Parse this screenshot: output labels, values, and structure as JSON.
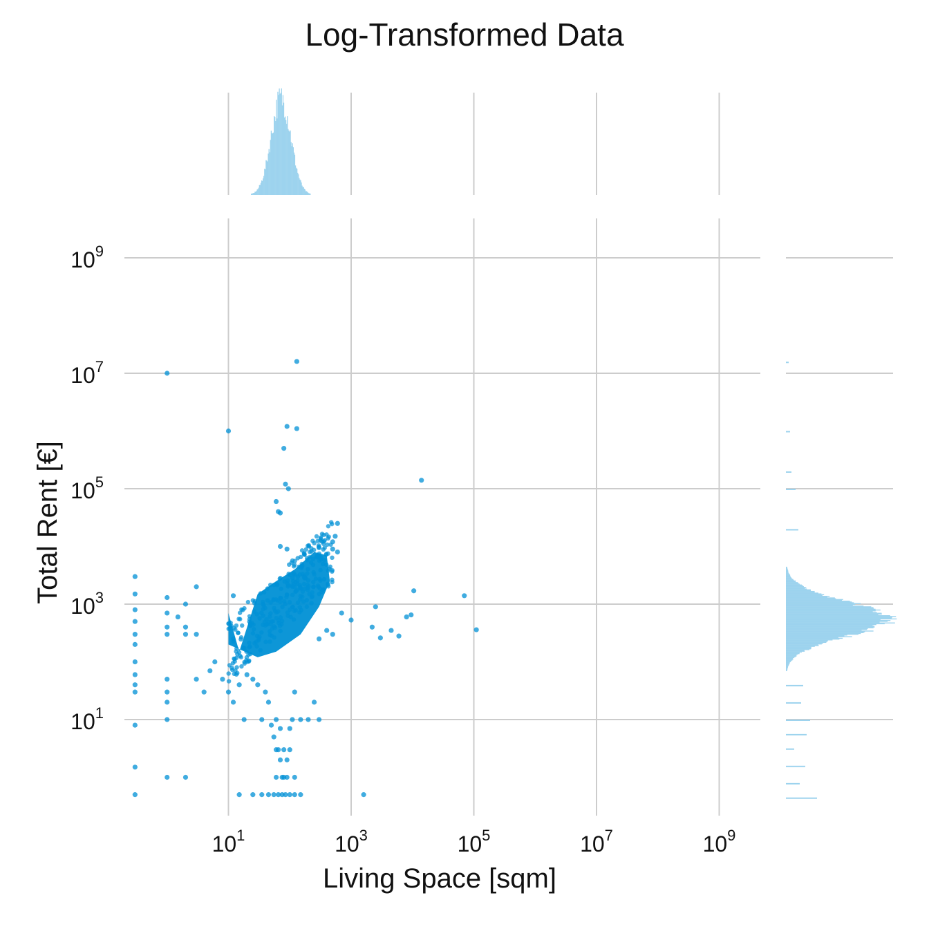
{
  "chart_data": {
    "type": "scatter",
    "title": "Log-Transformed Data",
    "xlabel": "Living Space [sqm]",
    "ylabel": "Total Rent [€]",
    "x_scale": "log",
    "y_scale": "log",
    "xlim": [
      0.2,
      3500000000
    ],
    "ylim": [
      0.2,
      5000000000
    ],
    "x_ticks": [
      {
        "value": 10,
        "base": "10",
        "exp": "1"
      },
      {
        "value": 1000,
        "base": "10",
        "exp": "3"
      },
      {
        "value": 100000,
        "base": "10",
        "exp": "5"
      },
      {
        "value": 10000000,
        "base": "10",
        "exp": "7"
      },
      {
        "value": 1000000000,
        "base": "10",
        "exp": "9"
      }
    ],
    "y_ticks": [
      {
        "value": 10,
        "base": "10",
        "exp": "1"
      },
      {
        "value": 1000,
        "base": "10",
        "exp": "3"
      },
      {
        "value": 100000,
        "base": "10",
        "exp": "5"
      },
      {
        "value": 10000000,
        "base": "10",
        "exp": "7"
      },
      {
        "value": 1000000000,
        "base": "10",
        "exp": "9"
      }
    ],
    "grid": true,
    "marginal_histograms": [
      "top",
      "right"
    ],
    "colors": {
      "points": "#0090d5",
      "histogram": "#9dd3ee",
      "grid": "#cccccc"
    },
    "points": [
      [
        1,
        10000000
      ],
      [
        130,
        16000000
      ],
      [
        10,
        1000000
      ],
      [
        90,
        1200000
      ],
      [
        130,
        1100000
      ],
      [
        80,
        500000
      ],
      [
        85,
        120000
      ],
      [
        95,
        100000
      ],
      [
        14000,
        140000
      ],
      [
        60,
        60000
      ],
      [
        65,
        40000
      ],
      [
        70,
        38000
      ],
      [
        600,
        25000
      ],
      [
        550,
        15000
      ],
      [
        500,
        12000
      ],
      [
        90,
        9000
      ],
      [
        70,
        10000
      ],
      [
        300,
        9500
      ],
      [
        500,
        9000
      ],
      [
        600,
        8000
      ],
      [
        3,
        2000
      ],
      [
        12,
        1400
      ],
      [
        10500,
        1700
      ],
      [
        70000,
        1400
      ],
      [
        1000,
        530
      ],
      [
        2500,
        900
      ],
      [
        2200,
        400
      ],
      [
        3000,
        260
      ],
      [
        4500,
        350
      ],
      [
        8000,
        600
      ],
      [
        9500,
        650
      ],
      [
        6000,
        280
      ],
      [
        110000,
        360
      ],
      [
        700,
        700
      ],
      [
        400,
        350
      ],
      [
        500,
        300
      ],
      [
        300,
        250
      ],
      [
        0.3,
        3000
      ],
      [
        0.3,
        1500
      ],
      [
        0.3,
        800
      ],
      [
        0.3,
        500
      ],
      [
        0.3,
        300
      ],
      [
        0.3,
        200
      ],
      [
        0.3,
        100
      ],
      [
        0.3,
        60
      ],
      [
        0.3,
        40
      ],
      [
        0.3,
        30
      ],
      [
        0.3,
        8
      ],
      [
        0.3,
        1.5
      ],
      [
        0.3,
        0.5
      ],
      [
        1,
        1300
      ],
      [
        1,
        700
      ],
      [
        1,
        400
      ],
      [
        1,
        300
      ],
      [
        1,
        50
      ],
      [
        1,
        30
      ],
      [
        1,
        20
      ],
      [
        1,
        10
      ],
      [
        1,
        1
      ],
      [
        1.5,
        600
      ],
      [
        2,
        1000
      ],
      [
        2,
        400
      ],
      [
        2,
        300
      ],
      [
        2,
        1
      ],
      [
        3,
        300
      ],
      [
        3,
        50
      ],
      [
        4,
        30
      ],
      [
        5,
        70
      ],
      [
        6,
        100
      ],
      [
        8,
        50
      ],
      [
        10,
        30
      ],
      [
        12,
        20
      ],
      [
        15,
        40
      ],
      [
        18,
        10
      ],
      [
        20,
        60
      ],
      [
        25,
        50
      ],
      [
        30,
        40
      ],
      [
        35,
        10
      ],
      [
        40,
        30
      ],
      [
        45,
        20
      ],
      [
        50,
        8
      ],
      [
        55,
        5
      ],
      [
        60,
        10
      ],
      [
        65,
        3
      ],
      [
        70,
        2
      ],
      [
        75,
        1
      ],
      [
        80,
        1
      ],
      [
        90,
        1
      ],
      [
        100,
        0.5
      ],
      [
        110,
        10
      ],
      [
        120,
        30
      ],
      [
        150,
        10
      ],
      [
        200,
        10
      ],
      [
        250,
        20
      ],
      [
        300,
        10
      ],
      [
        15,
        0.5
      ],
      [
        25,
        0.5
      ],
      [
        35,
        0.5
      ],
      [
        45,
        0.5
      ],
      [
        55,
        0.5
      ],
      [
        65,
        0.5
      ],
      [
        75,
        0.5
      ],
      [
        85,
        0.5
      ],
      [
        120,
        0.5
      ],
      [
        150,
        0.5
      ],
      [
        1600,
        0.5
      ],
      [
        60,
        3
      ],
      [
        80,
        3
      ],
      [
        100,
        3
      ],
      [
        70,
        7
      ],
      [
        100,
        7
      ],
      [
        60,
        1
      ],
      [
        120,
        1
      ],
      [
        90,
        2
      ]
    ],
    "dense_cluster": [
      {
        "x": 10,
        "y": 200
      },
      {
        "x": 10,
        "y": 700
      },
      {
        "x": 15,
        "y": 150
      },
      {
        "x": 30,
        "y": 1500
      },
      {
        "x": 60,
        "y": 2500
      },
      {
        "x": 120,
        "y": 4000
      },
      {
        "x": 250,
        "y": 8000
      },
      {
        "x": 400,
        "y": 7000
      },
      {
        "x": 450,
        "y": 2500
      },
      {
        "x": 300,
        "y": 900
      },
      {
        "x": 150,
        "y": 300
      },
      {
        "x": 60,
        "y": 150
      },
      {
        "x": 30,
        "y": 120
      }
    ]
  }
}
